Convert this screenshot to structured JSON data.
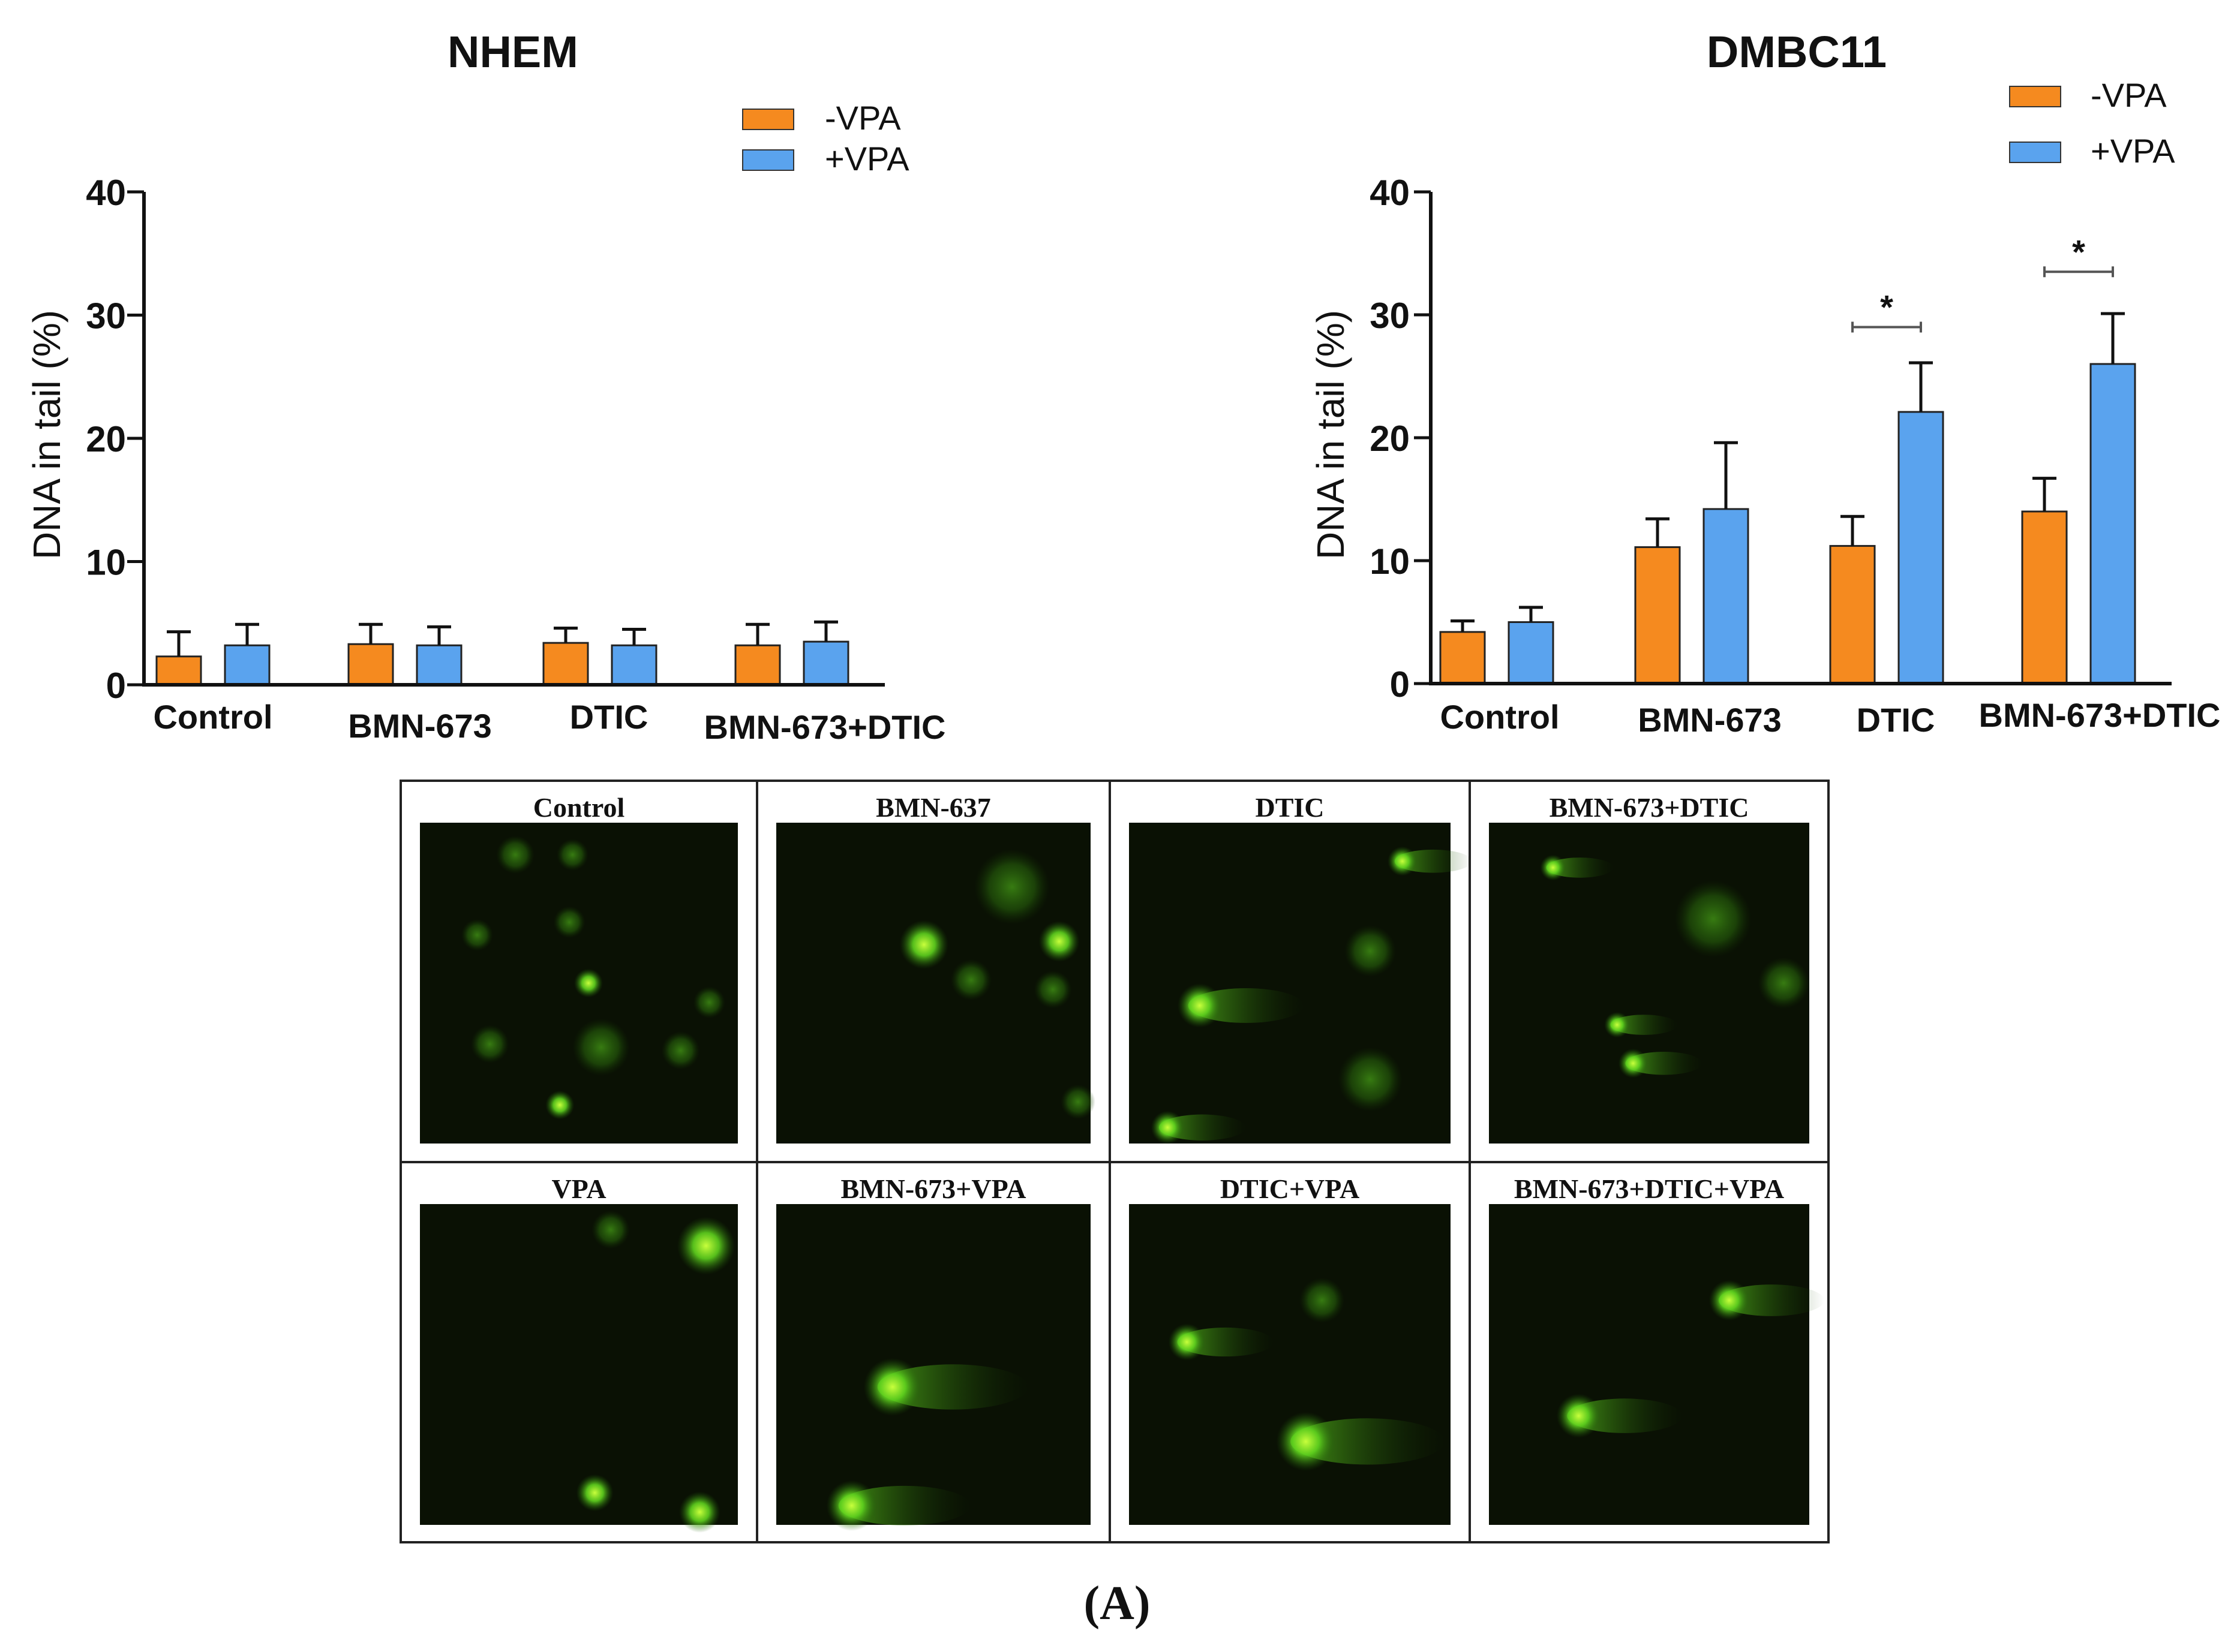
{
  "chart_data": [
    {
      "type": "bar",
      "title": "NHEM",
      "ylabel": "DNA in tail (%)",
      "xlabel": "",
      "ylim": [
        0,
        40
      ],
      "yticks": [
        "0",
        "10",
        "20",
        "30",
        "40"
      ],
      "categories": [
        "Control",
        "BMN-673",
        "DTIC",
        "BMN-673+DTIC"
      ],
      "series": [
        {
          "name": "-VPA",
          "color": "#f58a1f",
          "values": [
            2.3,
            3.3,
            3.4,
            3.2
          ],
          "errors": [
            2.0,
            1.6,
            1.2,
            1.7
          ]
        },
        {
          "name": "+VPA",
          "color": "#5aa3ee",
          "values": [
            3.2,
            3.2,
            3.2,
            3.5
          ],
          "errors": [
            1.7,
            1.5,
            1.3,
            1.6
          ]
        }
      ],
      "legend_position": "top-right",
      "significance": []
    },
    {
      "type": "bar",
      "title": "DMBC11",
      "ylabel": "DNA in tail (%)",
      "xlabel": "",
      "ylim": [
        0,
        40
      ],
      "yticks": [
        "0",
        "10",
        "20",
        "30",
        "40"
      ],
      "categories": [
        "Control",
        "BMN-673",
        "DTIC",
        "BMN-673+DTIC"
      ],
      "series": [
        {
          "name": "-VPA",
          "color": "#f58a1f",
          "values": [
            4.2,
            11.1,
            11.2,
            14.0
          ],
          "errors": [
            0.9,
            2.3,
            2.4,
            2.7
          ]
        },
        {
          "name": "+VPA",
          "color": "#5aa3ee",
          "values": [
            5.0,
            14.2,
            22.1,
            26.0
          ],
          "errors": [
            1.2,
            5.4,
            4.0,
            4.1
          ]
        }
      ],
      "legend_position": "top-right",
      "significance": [
        {
          "category": "DTIC",
          "label": "*",
          "y": 29
        },
        {
          "category": "BMN-673+DTIC",
          "label": "*",
          "y": 33.5
        }
      ]
    }
  ],
  "micrographs": {
    "row1": [
      "Control",
      "BMN-637",
      "DTIC",
      "BMN-673+DTIC"
    ],
    "row2": [
      "VPA",
      "BMN-673+VPA",
      "DTIC+VPA",
      "BMN-673+DTIC+VPA"
    ]
  },
  "panel_label": "(A)"
}
